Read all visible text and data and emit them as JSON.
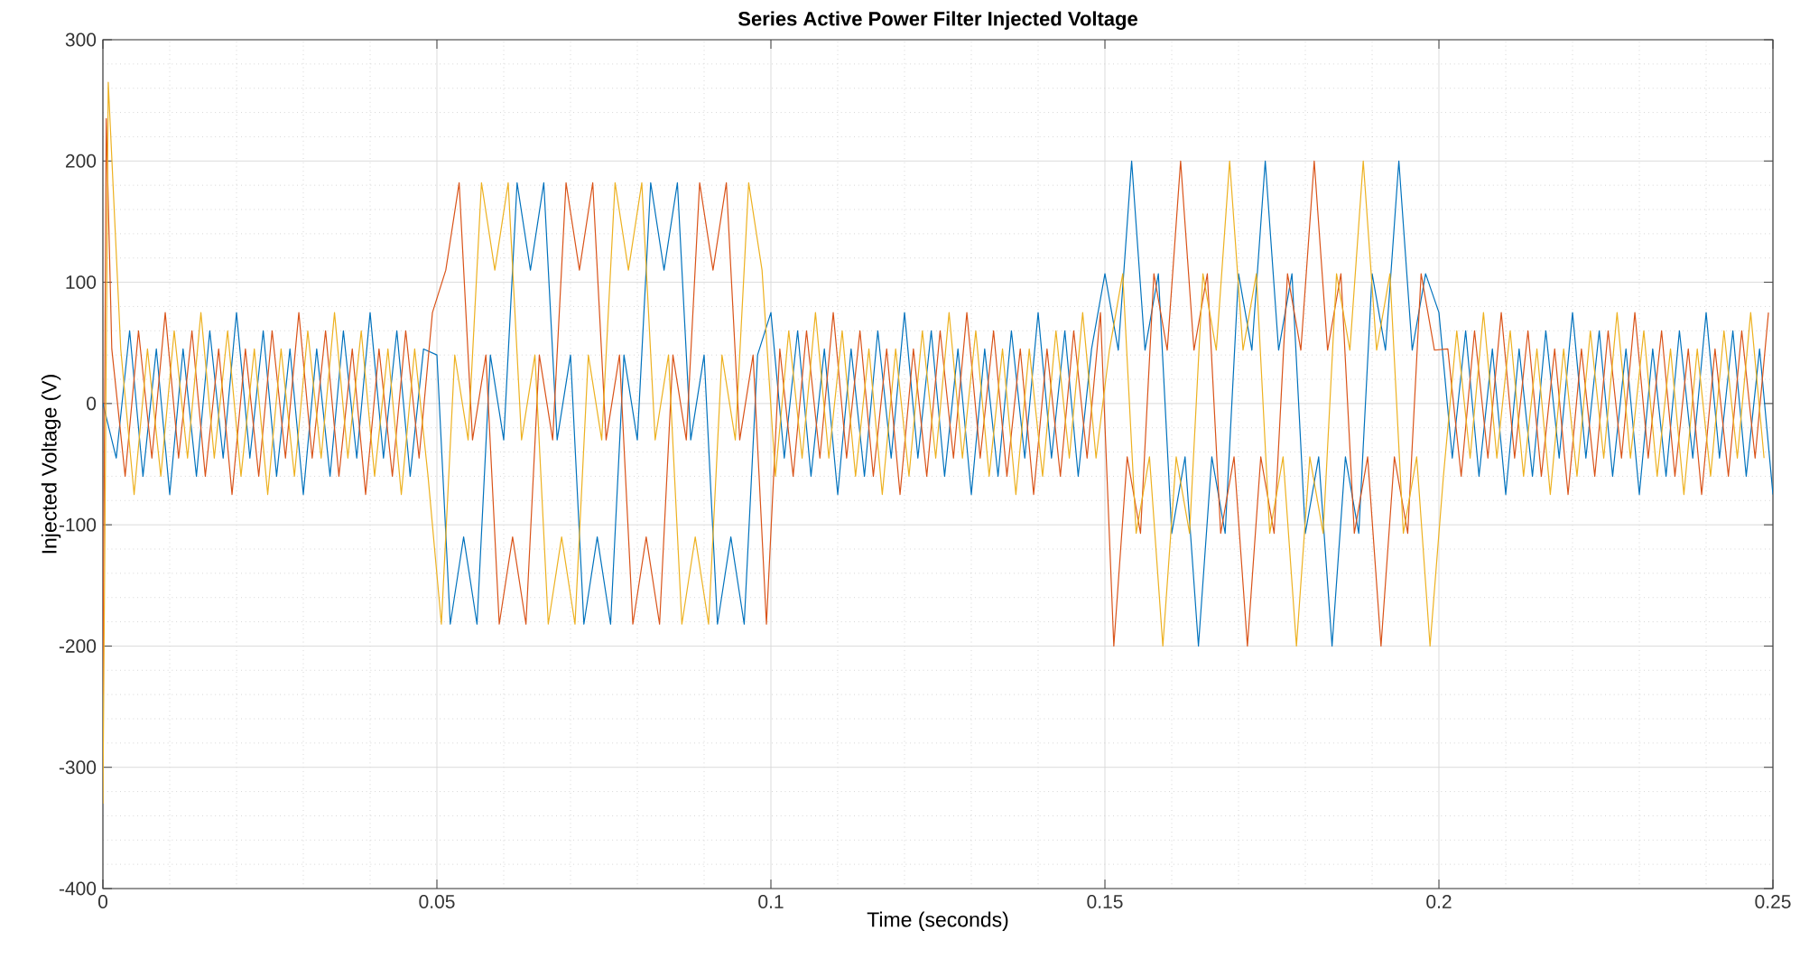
{
  "chart_data": {
    "type": "line",
    "title": "Series Active Power Filter Injected Voltage",
    "xlabel": "Time (seconds)",
    "ylabel": "Injected Voltage (V)",
    "xlim": [
      0,
      0.25
    ],
    "ylim": [
      -400,
      300
    ],
    "xticks": [
      0,
      0.05,
      0.1,
      0.15,
      0.2,
      0.25
    ],
    "yticks": [
      -400,
      -300,
      -200,
      -100,
      0,
      100,
      200,
      300
    ],
    "grid": true,
    "x": [
      0,
      0.002,
      0.004,
      0.006,
      0.008,
      0.01,
      0.012,
      0.014,
      0.016,
      0.018,
      0.02,
      0.022,
      0.024,
      0.026,
      0.028,
      0.03,
      0.032,
      0.034,
      0.036,
      0.038,
      0.04,
      0.042,
      0.044,
      0.046,
      0.048,
      0.05,
      0.052,
      0.054,
      0.056,
      0.058,
      0.06,
      0.062,
      0.064,
      0.066,
      0.068,
      0.07,
      0.072,
      0.074,
      0.076,
      0.078,
      0.08,
      0.082,
      0.084,
      0.086,
      0.088,
      0.09,
      0.092,
      0.094,
      0.096,
      0.098,
      0.1,
      0.102,
      0.104,
      0.106,
      0.108,
      0.11,
      0.112,
      0.114,
      0.116,
      0.118,
      0.12,
      0.122,
      0.124,
      0.126,
      0.128,
      0.13,
      0.132,
      0.134,
      0.136,
      0.138,
      0.14,
      0.142,
      0.144,
      0.146,
      0.148,
      0.15,
      0.152,
      0.154,
      0.156,
      0.158,
      0.16,
      0.162,
      0.164,
      0.166,
      0.168,
      0.17,
      0.172,
      0.174,
      0.176,
      0.178,
      0.18,
      0.182,
      0.184,
      0.186,
      0.188,
      0.19,
      0.192,
      0.194,
      0.196,
      0.198,
      0.2,
      0.202,
      0.204,
      0.206,
      0.208,
      0.21,
      0.212,
      0.214,
      0.216,
      0.218,
      0.22,
      0.222,
      0.224,
      0.226,
      0.228,
      0.23,
      0.232,
      0.234,
      0.236,
      0.238,
      0.24,
      0.242,
      0.244,
      0.246,
      0.248,
      0.25
    ],
    "series": [
      {
        "color": "#0072bd",
        "values": [
          0,
          -45,
          60,
          -60,
          45,
          -75,
          45,
          -60,
          60,
          -45,
          75,
          -45,
          60,
          -60,
          45,
          -75,
          45,
          -60,
          60,
          -45,
          75,
          -45,
          60,
          -60,
          45,
          40,
          -182,
          -110,
          -182,
          40,
          -30,
          182,
          110,
          182,
          -30,
          40,
          -182,
          -110,
          -182,
          40,
          -30,
          182,
          110,
          182,
          -30,
          40,
          -182,
          -110,
          -182,
          40,
          75,
          -45,
          60,
          -60,
          45,
          -75,
          45,
          -60,
          60,
          -45,
          75,
          -45,
          60,
          -60,
          45,
          -75,
          45,
          -60,
          60,
          -45,
          75,
          -45,
          60,
          -60,
          45,
          107,
          44,
          200,
          44,
          107,
          -107,
          -44,
          -200,
          -44,
          -107,
          107,
          44,
          200,
          44,
          107,
          -107,
          -44,
          -200,
          -44,
          -107,
          107,
          44,
          200,
          44,
          107,
          75,
          -45,
          60,
          -60,
          45,
          -75,
          45,
          -60,
          60,
          -45,
          75,
          -45,
          60,
          -60,
          45,
          -75,
          45,
          -60,
          60,
          -45,
          75,
          -45,
          60,
          -60,
          45,
          -75
        ]
      },
      {
        "color": "#d95319",
        "x": [
          0,
          0.0005,
          0.00133,
          0.00333,
          0.00533,
          0.00733,
          0.00933,
          0.01133,
          0.01333,
          0.01533,
          0.01733,
          0.01933,
          0.02133,
          0.02333,
          0.02533,
          0.02733,
          0.02933,
          0.03133,
          0.03333,
          0.03533,
          0.03733,
          0.03933,
          0.04133,
          0.04333,
          0.04533,
          0.04733,
          0.04933,
          0.05133,
          0.05333,
          0.05533,
          0.05733,
          0.05933,
          0.06133,
          0.06333,
          0.06533,
          0.06733,
          0.06933,
          0.07133,
          0.07333,
          0.07533,
          0.07733,
          0.07933,
          0.08133,
          0.08333,
          0.08533,
          0.08733,
          0.08933,
          0.09133,
          0.09333,
          0.09533,
          0.09733,
          0.09933,
          0.10133,
          0.10333,
          0.10533,
          0.10733,
          0.10933,
          0.11133,
          0.11333,
          0.11533,
          0.11733,
          0.11933,
          0.12133,
          0.12333,
          0.12533,
          0.12733,
          0.12933,
          0.13133,
          0.13333,
          0.13533,
          0.13733,
          0.13933,
          0.14133,
          0.14333,
          0.14533,
          0.14733,
          0.14933,
          0.15133,
          0.15333,
          0.15533,
          0.15733,
          0.15933,
          0.16133,
          0.16333,
          0.16533,
          0.16733,
          0.16933,
          0.17133,
          0.17333,
          0.17533,
          0.17733,
          0.17933,
          0.18133,
          0.18333,
          0.18533,
          0.18733,
          0.18933,
          0.19133,
          0.19333,
          0.19533,
          0.19733,
          0.19933,
          0.20133,
          0.20333,
          0.20533,
          0.20733,
          0.20933,
          0.21133,
          0.21333,
          0.21533,
          0.21733,
          0.21933,
          0.22133,
          0.22333,
          0.22533,
          0.22733,
          0.22933,
          0.23133,
          0.23333,
          0.23533,
          0.23733,
          0.23933,
          0.24133,
          0.24333,
          0.24533,
          0.24733,
          0.24933
        ],
        "values": [
          -240,
          235,
          45,
          -60,
          60,
          -45,
          75,
          -45,
          60,
          -60,
          45,
          -75,
          45,
          -60,
          60,
          -45,
          75,
          -45,
          60,
          -60,
          45,
          -75,
          45,
          -60,
          60,
          -45,
          75,
          110,
          182,
          -30,
          40,
          -182,
          -110,
          -182,
          40,
          -30,
          182,
          110,
          182,
          -30,
          40,
          -182,
          -110,
          -182,
          40,
          -30,
          182,
          110,
          182,
          -30,
          40,
          -182,
          45,
          -60,
          60,
          -45,
          75,
          -45,
          60,
          -60,
          45,
          -75,
          45,
          -60,
          60,
          -45,
          75,
          -45,
          60,
          -60,
          45,
          -75,
          45,
          -60,
          60,
          -45,
          75,
          -200,
          -44,
          -107,
          107,
          44,
          200,
          44,
          107,
          -107,
          -44,
          -200,
          -44,
          -107,
          107,
          44,
          200,
          44,
          107,
          -107,
          -44,
          -200,
          -44,
          -107,
          107,
          44,
          45,
          -60,
          60,
          -45,
          75,
          -45,
          60,
          -60,
          45,
          -75,
          45,
          -60,
          60,
          -45,
          75,
          -45,
          60,
          -60,
          45,
          -75,
          45,
          -60,
          60,
          -45,
          75
        ]
      },
      {
        "color": "#edb120",
        "x": [
          0,
          0.0008,
          0.00267,
          0.00467,
          0.00667,
          0.00867,
          0.01067,
          0.01267,
          0.01467,
          0.01667,
          0.01867,
          0.02067,
          0.02267,
          0.02467,
          0.02667,
          0.02867,
          0.03067,
          0.03267,
          0.03467,
          0.03667,
          0.03867,
          0.04067,
          0.04267,
          0.04467,
          0.04667,
          0.04867,
          0.05067,
          0.05267,
          0.05467,
          0.05667,
          0.05867,
          0.06067,
          0.06267,
          0.06467,
          0.06667,
          0.06867,
          0.07067,
          0.07267,
          0.07467,
          0.07667,
          0.07867,
          0.08067,
          0.08267,
          0.08467,
          0.08667,
          0.08867,
          0.09067,
          0.09267,
          0.09467,
          0.09667,
          0.09867,
          0.10067,
          0.10267,
          0.10467,
          0.10667,
          0.10867,
          0.11067,
          0.11267,
          0.11467,
          0.11667,
          0.11867,
          0.12067,
          0.12267,
          0.12467,
          0.12667,
          0.12867,
          0.13067,
          0.13267,
          0.13467,
          0.13667,
          0.13867,
          0.14067,
          0.14267,
          0.14467,
          0.14667,
          0.14867,
          0.15067,
          0.15267,
          0.15467,
          0.15667,
          0.15867,
          0.16067,
          0.16267,
          0.16467,
          0.16667,
          0.16867,
          0.17067,
          0.17267,
          0.17467,
          0.17667,
          0.17867,
          0.18067,
          0.18267,
          0.18467,
          0.18667,
          0.18867,
          0.19067,
          0.19267,
          0.19467,
          0.19667,
          0.19867,
          0.20067,
          0.20267,
          0.20467,
          0.20667,
          0.20867,
          0.21067,
          0.21267,
          0.21467,
          0.21667,
          0.21867,
          0.22067,
          0.22267,
          0.22467,
          0.22667,
          0.22867,
          0.23067,
          0.23267,
          0.23467,
          0.23667,
          0.23867,
          0.24067,
          0.24267,
          0.24467,
          0.24667,
          0.24867
        ],
        "values": [
          -330,
          265,
          45,
          -75,
          45,
          -60,
          60,
          -45,
          75,
          -45,
          60,
          -60,
          45,
          -75,
          45,
          -60,
          60,
          -45,
          75,
          -45,
          60,
          -60,
          45,
          -75,
          45,
          -60,
          -182,
          40,
          -30,
          182,
          110,
          182,
          -30,
          40,
          -182,
          -110,
          -182,
          40,
          -30,
          182,
          110,
          182,
          -30,
          40,
          -182,
          -110,
          -182,
          40,
          -30,
          182,
          110,
          -60,
          60,
          -45,
          75,
          -45,
          60,
          -60,
          45,
          -75,
          45,
          -60,
          60,
          -45,
          75,
          -45,
          60,
          -60,
          45,
          -75,
          45,
          -60,
          60,
          -45,
          75,
          -45,
          44,
          107,
          -107,
          -44,
          -200,
          -44,
          -107,
          107,
          44,
          200,
          44,
          107,
          -107,
          -44,
          -200,
          -44,
          -107,
          107,
          44,
          200,
          44,
          107,
          -107,
          -44,
          -200,
          -60,
          60,
          -45,
          75,
          -45,
          60,
          -60,
          45,
          -75,
          45,
          -60,
          60,
          -45,
          75,
          -45,
          60,
          -60,
          45,
          -75,
          45,
          -60,
          60,
          -45,
          75,
          -45
        ]
      }
    ]
  }
}
